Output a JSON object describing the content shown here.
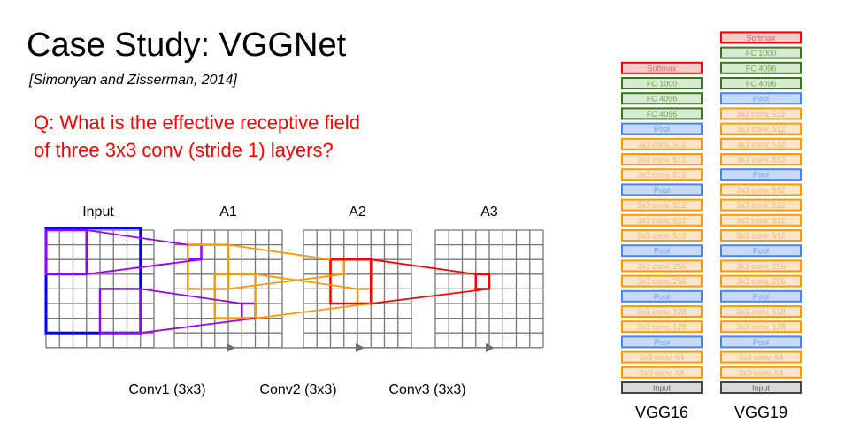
{
  "title": "Case Study: VGGNet",
  "citation": "[Simonyan and Zisserman, 2014]",
  "question": [
    "Q: What is the effective receptive field",
    "of three 3x3 conv (stride 1) layers?"
  ],
  "diagram": {
    "grid_labels": [
      "Input",
      "A1",
      "A2",
      "A3"
    ],
    "conv_labels": [
      "Conv1 (3x3)",
      "Conv2 (3x3)",
      "Conv3 (3x3)"
    ],
    "grid_size": 8,
    "colors": {
      "input_field": "#0000ff",
      "conv1": "#9900ff",
      "conv2": "#ff9900",
      "conv3": "#ff0000",
      "grid": "#777777"
    }
  },
  "architectures": [
    {
      "name": "VGG16",
      "layers": [
        "Softmax",
        "FC 1000",
        "FC 4096",
        "FC 4096",
        "Pool",
        "3x3 conv, 512",
        "3x3 conv, 512",
        "3x3 conv, 512",
        "Pool",
        "3x3 conv, 512",
        "3x3 conv, 512",
        "3x3 conv, 512",
        "Pool",
        "3x3 conv, 256",
        "3x3 conv, 256",
        "Pool",
        "3x3 conv, 128",
        "3x3 conv, 128",
        "Pool",
        "3x3 conv, 64",
        "3x3 conv, 64",
        "Input"
      ]
    },
    {
      "name": "VGG19",
      "layers": [
        "Softmax",
        "FC 1000",
        "FC 4096",
        "FC 4096",
        "Pool",
        "3x3 conv, 512",
        "3x3 conv, 512",
        "3x3 conv, 512",
        "3x3 conv, 512",
        "Pool",
        "3x3 conv, 512",
        "3x3 conv, 512",
        "3x3 conv, 512",
        "3x3 conv, 512",
        "Pool",
        "3x3 conv, 256",
        "3x3 conv, 256",
        "Pool",
        "3x3 conv, 128",
        "3x3 conv, 128",
        "Pool",
        "3x3 conv, 64",
        "3x3 conv, 64",
        "Input"
      ]
    }
  ],
  "layer_colors": {
    "softmax": {
      "fill": "#f4cccc",
      "border": "#ff0000",
      "text": "#e06666"
    },
    "fc": {
      "fill": "#d9ead3",
      "border": "#38761d",
      "text": "#6aa84f"
    },
    "pool": {
      "fill": "#c9daf8",
      "border": "#4a86e8",
      "text": "#6d9eeb"
    },
    "conv": {
      "fill": "#fce5cd",
      "border": "#ff9900",
      "text": "#f6b26b"
    },
    "input": {
      "fill": "#d9d9d9",
      "border": "#434343",
      "text": "#666666"
    }
  }
}
